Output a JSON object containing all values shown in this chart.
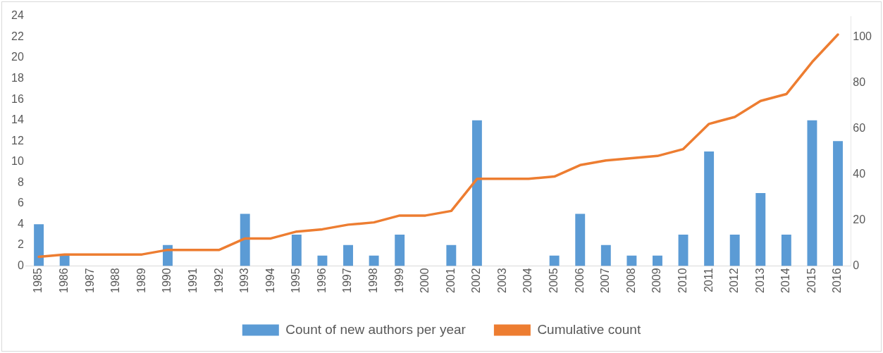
{
  "chart_data": {
    "type": "bar",
    "categories": [
      "1985",
      "1986",
      "1987",
      "1988",
      "1989",
      "1990",
      "1991",
      "1992",
      "1993",
      "1994",
      "1995",
      "1996",
      "1997",
      "1998",
      "1999",
      "2000",
      "2001",
      "2002",
      "2003",
      "2004",
      "2005",
      "2006",
      "2007",
      "2008",
      "2009",
      "2010",
      "2011",
      "2012",
      "2013",
      "2014",
      "2015",
      "2016"
    ],
    "series": [
      {
        "name": "Count of new authors per year",
        "color": "#5b9bd5",
        "values": [
          4,
          1,
          0,
          0,
          0,
          2,
          0,
          0,
          5,
          0,
          3,
          1,
          2,
          1,
          3,
          0,
          2,
          14,
          0,
          0,
          1,
          5,
          2,
          1,
          1,
          3,
          11,
          3,
          7,
          3,
          14,
          12
        ]
      },
      {
        "name": "Cumulative count",
        "type": "line",
        "axis": "y2",
        "color": "#ed7d31",
        "values": [
          4,
          5,
          5,
          5,
          5,
          7,
          7,
          7,
          12,
          12,
          15,
          16,
          18,
          19,
          22,
          22,
          24,
          38,
          38,
          38,
          39,
          44,
          46,
          47,
          48,
          51,
          62,
          65,
          72,
          75,
          89,
          101
        ]
      }
    ],
    "ylim": [
      0,
      24
    ],
    "yticks": [
      0,
      2,
      4,
      6,
      8,
      10,
      12,
      14,
      16,
      18,
      20,
      22,
      24
    ],
    "y2lim": [
      0,
      109
    ],
    "y2ticks": [
      0,
      20,
      40,
      60,
      80,
      100
    ],
    "grid": false,
    "legend": "bottom",
    "marker": "none",
    "line_style": "solid"
  }
}
